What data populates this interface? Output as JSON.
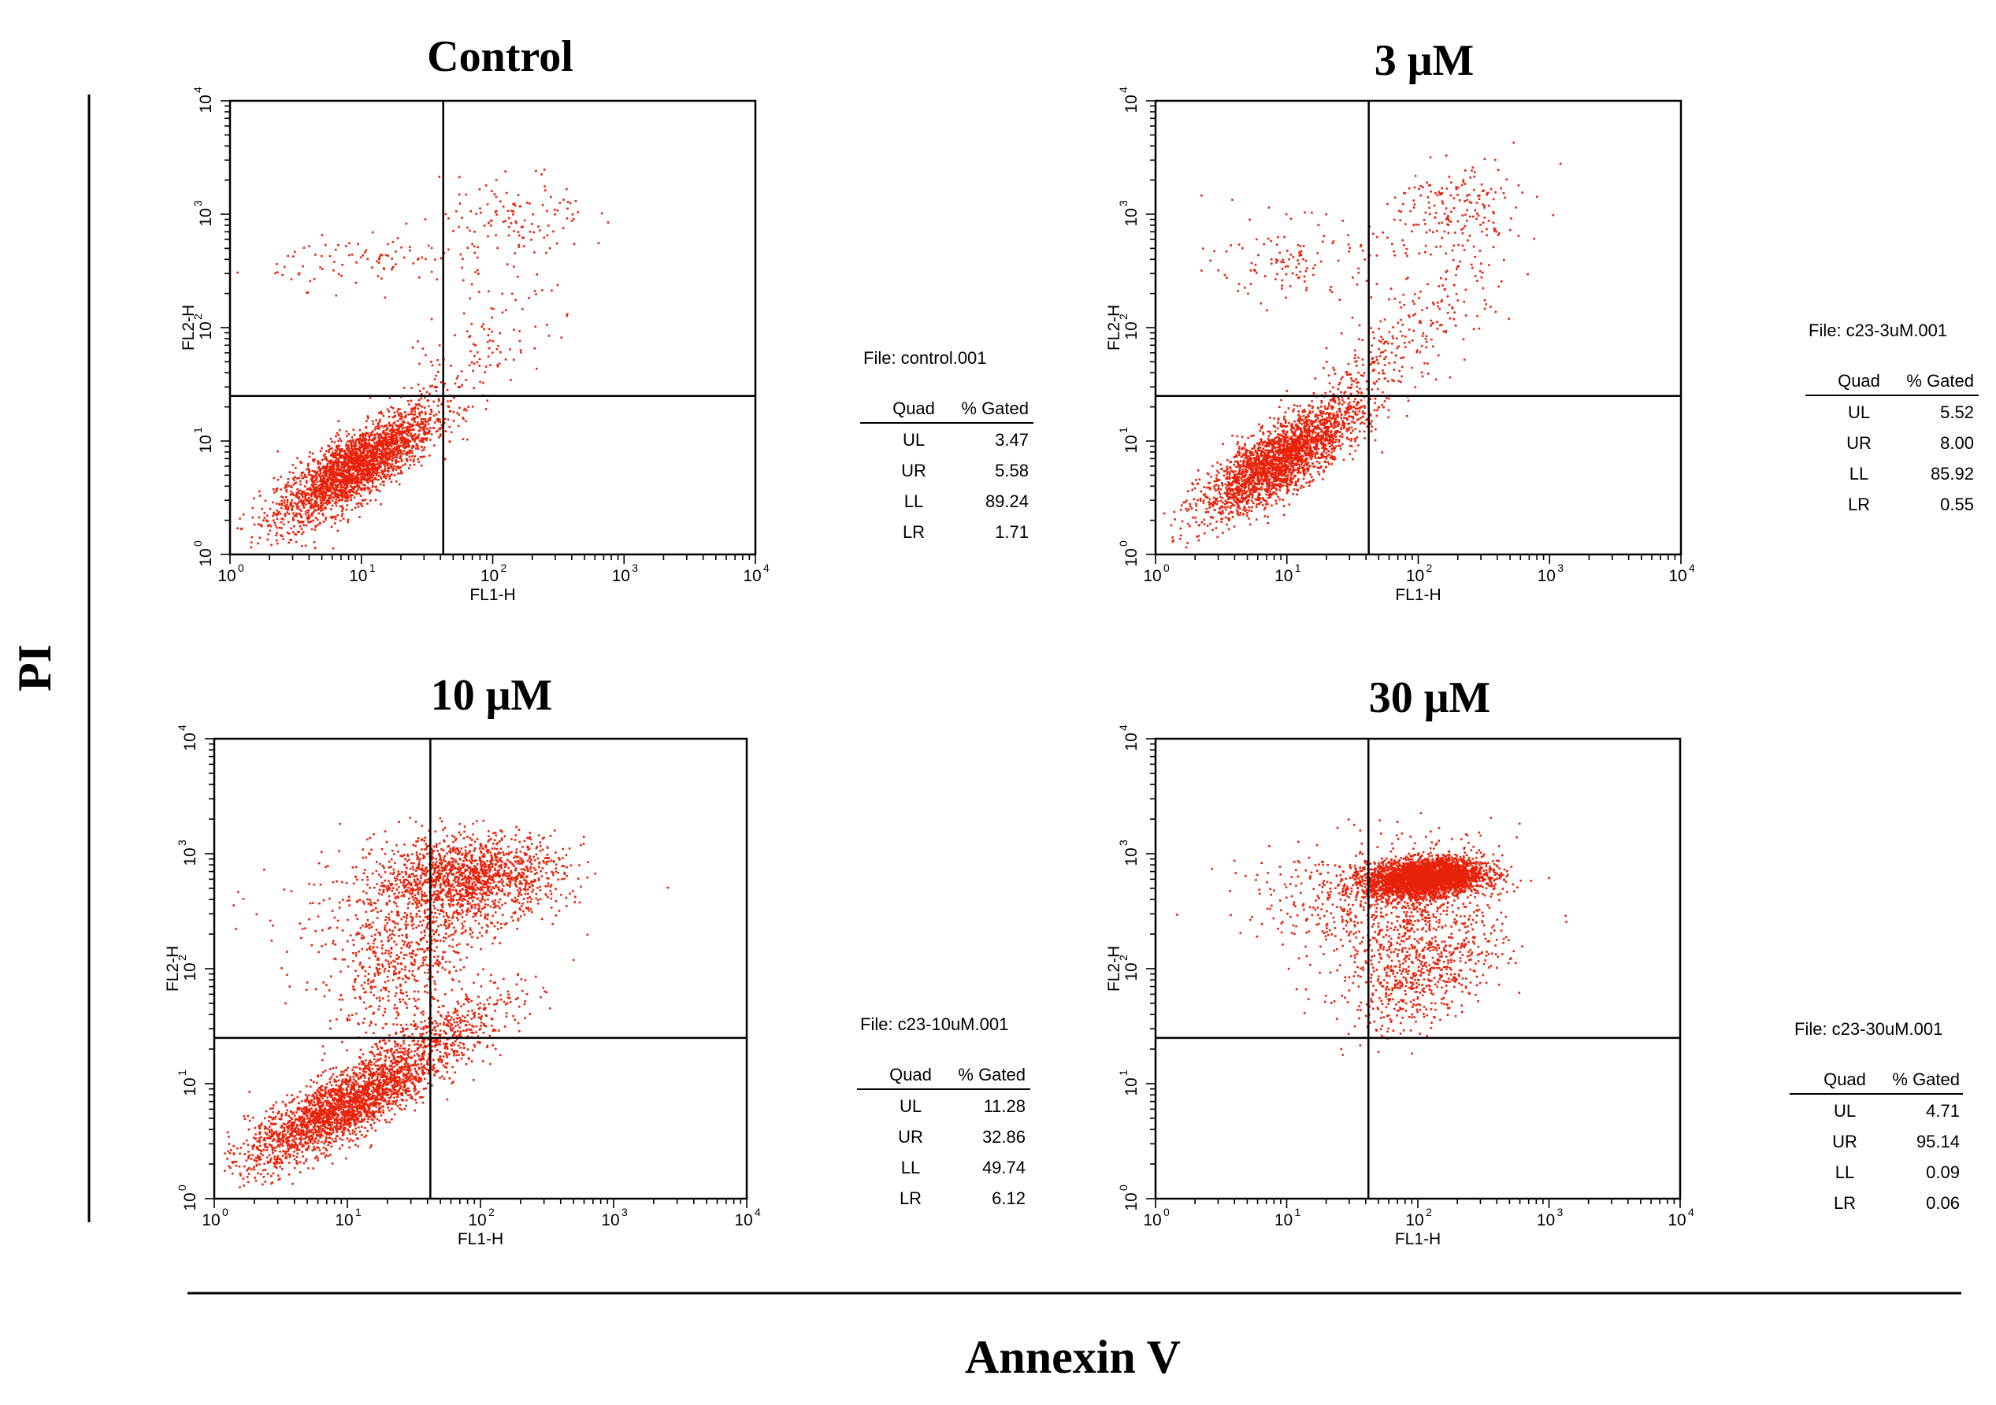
{
  "figure": {
    "y_axis_title": "PI",
    "x_axis_title": "Annexin V"
  },
  "colors": {
    "dots": "#e8220a",
    "lines": "#000000"
  },
  "chart_data": [
    {
      "type": "scatter",
      "title": "Control",
      "xlabel": "FL1-H",
      "ylabel": "FL2-H",
      "xscale": "log",
      "yscale": "log",
      "xlim": [
        1,
        10000
      ],
      "ylim": [
        1,
        10000
      ],
      "x_ticks": [
        "10",
        "10",
        "10",
        "10",
        "10"
      ],
      "x_tick_exps": [
        "0",
        "1",
        "2",
        "3",
        "4"
      ],
      "y_ticks": [
        "10",
        "10",
        "10",
        "10",
        "10"
      ],
      "y_tick_exps": [
        "0",
        "1",
        "2",
        "3",
        "4"
      ],
      "gate": {
        "x": 42,
        "y": 25
      },
      "stats": {
        "file": "File: control.001",
        "header": [
          "Quad",
          "% Gated"
        ],
        "rows": [
          {
            "quad": "UL",
            "pct": "3.47"
          },
          {
            "quad": "UR",
            "pct": "5.58"
          },
          {
            "quad": "LL",
            "pct": "89.24"
          },
          {
            "quad": "LR",
            "pct": "1.71"
          }
        ]
      }
    },
    {
      "type": "scatter",
      "title": "3 μM",
      "xlabel": "FL1-H",
      "ylabel": "FL2-H",
      "xscale": "log",
      "yscale": "log",
      "xlim": [
        1,
        10000
      ],
      "ylim": [
        1,
        10000
      ],
      "x_ticks": [
        "10",
        "10",
        "10",
        "10",
        "10"
      ],
      "x_tick_exps": [
        "0",
        "1",
        "2",
        "3",
        "4"
      ],
      "y_ticks": [
        "10",
        "10",
        "10",
        "10",
        "10"
      ],
      "y_tick_exps": [
        "0",
        "1",
        "2",
        "3",
        "4"
      ],
      "gate": {
        "x": 42,
        "y": 25
      },
      "stats": {
        "file": "File: c23-3uM.001",
        "header": [
          "Quad",
          "% Gated"
        ],
        "rows": [
          {
            "quad": "UL",
            "pct": "5.52"
          },
          {
            "quad": "UR",
            "pct": "8.00"
          },
          {
            "quad": "LL",
            "pct": "85.92"
          },
          {
            "quad": "LR",
            "pct": "0.55"
          }
        ]
      }
    },
    {
      "type": "scatter",
      "title": "10 μM",
      "xlabel": "FL1-H",
      "ylabel": "FL2-H",
      "xscale": "log",
      "yscale": "log",
      "xlim": [
        1,
        10000
      ],
      "ylim": [
        1,
        10000
      ],
      "x_ticks": [
        "10",
        "10",
        "10",
        "10",
        "10"
      ],
      "x_tick_exps": [
        "0",
        "1",
        "2",
        "3",
        "4"
      ],
      "y_ticks": [
        "10",
        "10",
        "10",
        "10",
        "10"
      ],
      "y_tick_exps": [
        "0",
        "1",
        "2",
        "3",
        "4"
      ],
      "gate": {
        "x": 42,
        "y": 25
      },
      "stats": {
        "file": "File: c23-10uM.001",
        "header": [
          "Quad",
          "% Gated"
        ],
        "rows": [
          {
            "quad": "UL",
            "pct": "11.28"
          },
          {
            "quad": "UR",
            "pct": "32.86"
          },
          {
            "quad": "LL",
            "pct": "49.74"
          },
          {
            "quad": "LR",
            "pct": "6.12"
          }
        ]
      }
    },
    {
      "type": "scatter",
      "title": "30 μM",
      "xlabel": "FL1-H",
      "ylabel": "FL2-H",
      "xscale": "log",
      "yscale": "log",
      "xlim": [
        1,
        10000
      ],
      "ylim": [
        1,
        10000
      ],
      "x_ticks": [
        "10",
        "10",
        "10",
        "10",
        "10"
      ],
      "x_tick_exps": [
        "0",
        "1",
        "2",
        "3",
        "4"
      ],
      "y_ticks": [
        "10",
        "10",
        "10",
        "10",
        "10"
      ],
      "y_tick_exps": [
        "0",
        "1",
        "2",
        "3",
        "4"
      ],
      "gate": {
        "x": 42,
        "y": 25
      },
      "stats": {
        "file": "File: c23-30uM.001",
        "header": [
          "Quad",
          "% Gated"
        ],
        "rows": [
          {
            "quad": "UL",
            "pct": "4.71"
          },
          {
            "quad": "UR",
            "pct": "95.14"
          },
          {
            "quad": "LL",
            "pct": "0.09"
          },
          {
            "quad": "LR",
            "pct": "0.06"
          }
        ]
      }
    }
  ]
}
